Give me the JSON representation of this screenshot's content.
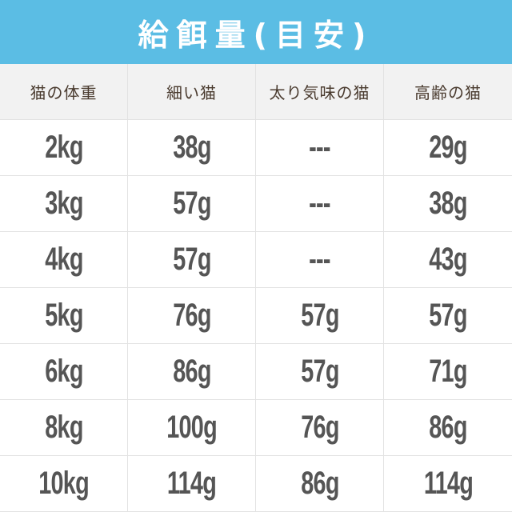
{
  "header": {
    "title": "給餌量(目安)"
  },
  "table": {
    "columns": [
      "猫の体重",
      "細い猫",
      "太り気味の猫",
      "高齢の猫"
    ],
    "rows": [
      [
        "2kg",
        "38g",
        "---",
        "29g"
      ],
      [
        "3kg",
        "57g",
        "---",
        "38g"
      ],
      [
        "4kg",
        "57g",
        "---",
        "43g"
      ],
      [
        "5kg",
        "76g",
        "57g",
        "57g"
      ],
      [
        "6kg",
        "86g",
        "57g",
        "71g"
      ],
      [
        "8kg",
        "100g",
        "76g",
        "86g"
      ],
      [
        "10kg",
        "114g",
        "86g",
        "114g"
      ]
    ]
  }
}
